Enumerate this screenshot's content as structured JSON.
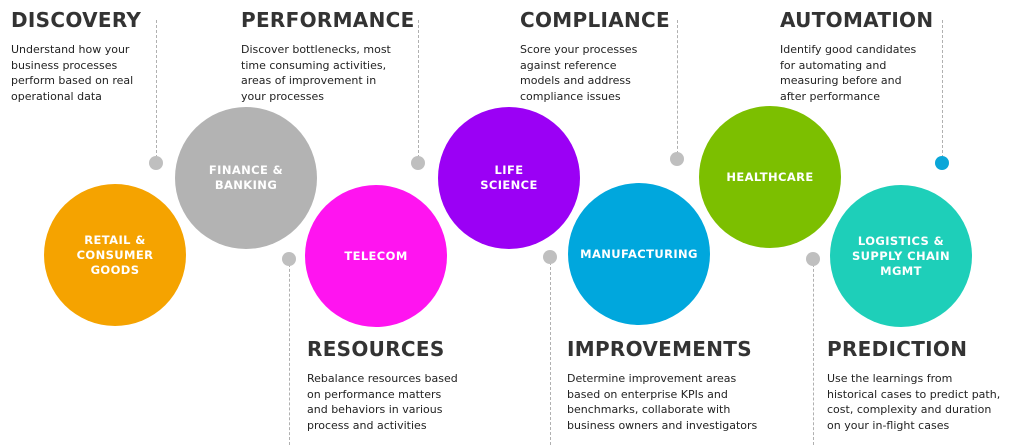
{
  "colors": {
    "heading": "#333333",
    "text": "#222222",
    "connector": "#b0b0b0",
    "dot_default": "#bfbfbf",
    "dot_accent": "#0aa6d8"
  },
  "stages": [
    {
      "title": "DISCOVERY",
      "desc": [
        "Understand how your",
        "business processes",
        "perform based on real",
        "operational data"
      ]
    },
    {
      "title": "PERFORMANCE",
      "desc": [
        "Discover bottlenecks, most",
        "time consuming activities,",
        "areas of improvement in",
        "your processes"
      ]
    },
    {
      "title": "RESOURCES",
      "desc": [
        "Rebalance resources based",
        "on performance matters",
        "and behaviors in various",
        "process and activities"
      ]
    },
    {
      "title": "COMPLIANCE",
      "desc": [
        "Score your processes",
        "against reference",
        "models and address",
        "compliance issues"
      ]
    },
    {
      "title": "IMPROVEMENTS",
      "desc": [
        "Determine improvement areas",
        "based on enterprise KPIs and",
        "benchmarks, collaborate with",
        "business owners and investigators"
      ]
    },
    {
      "title": "AUTOMATION",
      "desc": [
        "Identify good candidates",
        "for automating and",
        "measuring before and",
        "after performance"
      ]
    },
    {
      "title": "PREDICTION",
      "desc": [
        "Use the learnings from",
        "historical cases to predict path,",
        "cost, complexity and duration",
        "on your in-flight cases"
      ]
    }
  ],
  "industries": [
    {
      "lines": [
        "RETAIL &",
        "CONSUMER",
        "GOODS"
      ],
      "color": "#f5a300"
    },
    {
      "lines": [
        "FINANCE &",
        "BANKING"
      ],
      "color": "#b3b3b3"
    },
    {
      "lines": [
        "TELECOM"
      ],
      "color": "#ff14f0"
    },
    {
      "lines": [
        "LIFE",
        "SCIENCE"
      ],
      "color": "#9b00f5"
    },
    {
      "lines": [
        "MANUFACTURING"
      ],
      "color": "#00a7dd"
    },
    {
      "lines": [
        "HEALTHCARE"
      ],
      "color": "#7cbf00"
    },
    {
      "lines": [
        "LOGISTICS &",
        "SUPPLY CHAIN",
        "MGMT"
      ],
      "color": "#1ecfb9"
    }
  ]
}
